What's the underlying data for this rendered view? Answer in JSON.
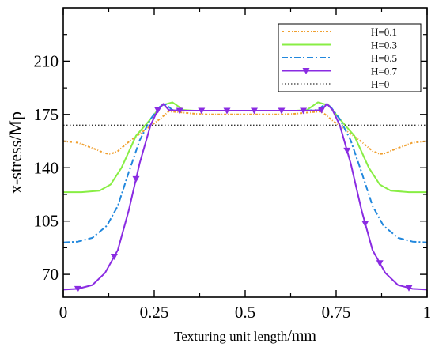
{
  "chart_data": {
    "type": "line",
    "title": "",
    "xlabel": "Texturing unit length",
    "xlabel_unit": "/mm",
    "ylabel": "x-stress/Mp",
    "xlim": [
      0,
      1
    ],
    "ylim": [
      55,
      245
    ],
    "xticks": [
      0,
      0.25,
      0.5,
      0.75,
      1
    ],
    "xtick_labels": [
      "0",
      "0.25",
      "0.5",
      "0.75",
      "1"
    ],
    "yticks": [
      70,
      105,
      140,
      175,
      210
    ],
    "ytick_labels": [
      "70",
      "105",
      "140",
      "175",
      "210"
    ],
    "grid": false,
    "legend_position": "top-right",
    "series": [
      {
        "name": "H=0.1",
        "color": "#f0a030",
        "dash": "3,2,1,2",
        "x": [
          0,
          0.04,
          0.09,
          0.115,
          0.13,
          0.15,
          0.18,
          0.22,
          0.26,
          0.29,
          0.32,
          0.36,
          0.4,
          0.45,
          0.5,
          0.55,
          0.6,
          0.64,
          0.68,
          0.71,
          0.74,
          0.78,
          0.82,
          0.85,
          0.87,
          0.885,
          0.91,
          0.96,
          1
        ],
        "y": [
          157.5,
          156.5,
          152,
          149.5,
          149,
          151,
          157,
          164,
          171,
          177,
          176.5,
          175.5,
          175,
          175,
          175,
          175,
          175,
          175.5,
          176.5,
          177,
          171,
          164,
          157,
          151,
          149,
          149.5,
          152,
          156.5,
          157.5
        ]
      },
      {
        "name": "H=0.3",
        "color": "#88ee44",
        "dash": "",
        "x": [
          0,
          0.05,
          0.1,
          0.13,
          0.16,
          0.2,
          0.24,
          0.27,
          0.3,
          0.33,
          0.36,
          0.4,
          0.45,
          0.5,
          0.55,
          0.6,
          0.64,
          0.67,
          0.7,
          0.73,
          0.76,
          0.8,
          0.84,
          0.87,
          0.9,
          0.95,
          1
        ],
        "y": [
          124,
          124,
          125,
          129,
          140,
          161,
          172,
          181,
          183,
          178,
          177.5,
          177.5,
          177.5,
          177.5,
          177.5,
          177.5,
          177.5,
          178,
          183,
          181,
          172,
          161,
          140,
          129,
          125,
          124,
          124
        ]
      },
      {
        "name": "H=0.5",
        "color": "#2288dd",
        "dash": "8,3,2,3",
        "x": [
          0,
          0.04,
          0.08,
          0.12,
          0.15,
          0.18,
          0.21,
          0.24,
          0.265,
          0.28,
          0.3,
          0.34,
          0.4,
          0.5,
          0.6,
          0.66,
          0.7,
          0.72,
          0.735,
          0.76,
          0.79,
          0.82,
          0.85,
          0.88,
          0.92,
          0.96,
          1
        ],
        "y": [
          91,
          91.5,
          94,
          102,
          115,
          137,
          158,
          172,
          180,
          182,
          178,
          177.5,
          177.5,
          177.5,
          177.5,
          177.5,
          178,
          182,
          180,
          172,
          158,
          137,
          115,
          102,
          94,
          91.5,
          91
        ]
      },
      {
        "name": "H=0.7",
        "color": "#8a2be2",
        "dash": "",
        "marker": "triangle-down",
        "x": [
          0,
          0.04,
          0.08,
          0.115,
          0.15,
          0.18,
          0.21,
          0.24,
          0.26,
          0.275,
          0.29,
          0.32,
          0.38,
          0.45,
          0.5,
          0.55,
          0.62,
          0.68,
          0.71,
          0.725,
          0.74,
          0.76,
          0.79,
          0.82,
          0.85,
          0.885,
          0.92,
          0.96,
          1
        ],
        "y": [
          60,
          60.5,
          63,
          71,
          86,
          112,
          143,
          168,
          178,
          182,
          178,
          177.5,
          177.5,
          177.5,
          177.5,
          177.5,
          177.5,
          177.5,
          178,
          182,
          178,
          168,
          143,
          112,
          86,
          71,
          63,
          60.5,
          60
        ],
        "marker_x": [
          0.04,
          0.14,
          0.2,
          0.26,
          0.32,
          0.38,
          0.45,
          0.525,
          0.6,
          0.66,
          0.71,
          0.78,
          0.83,
          0.87,
          0.95
        ]
      },
      {
        "name": "H=0",
        "color": "#333333",
        "dash": "1.5,2.5",
        "x": [
          0,
          1
        ],
        "y": [
          168,
          168
        ]
      }
    ]
  }
}
